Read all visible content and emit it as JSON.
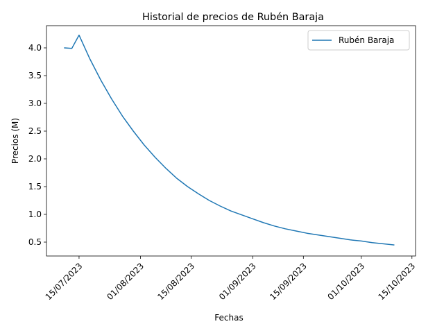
{
  "chart_data": {
    "type": "line",
    "title": "Historial de precios de Rubén Baraja",
    "xlabel": "Fechas",
    "ylabel": "Precios (M)",
    "xlim": [
      "2023-07-06",
      "2023-10-16"
    ],
    "ylim": [
      0.25,
      4.4
    ],
    "x_ticks": [
      "2023-07-15",
      "2023-08-01",
      "2023-08-15",
      "2023-09-01",
      "2023-09-15",
      "2023-10-01",
      "2023-10-15"
    ],
    "x_tick_labels": [
      "15/07/2023",
      "01/08/2023",
      "15/08/2023",
      "01/09/2023",
      "15/09/2023",
      "01/10/2023",
      "15/10/2023"
    ],
    "y_ticks": [
      0.5,
      1.0,
      1.5,
      2.0,
      2.5,
      3.0,
      3.5,
      4.0
    ],
    "y_tick_labels": [
      "0.5",
      "1.0",
      "1.5",
      "2.0",
      "2.5",
      "3.0",
      "3.5",
      "4.0"
    ],
    "grid": false,
    "legend_position": "top-right",
    "series": [
      {
        "name": "Rubén Baraja",
        "color": "#1f77b4",
        "points": [
          {
            "x": "2023-07-11",
            "y": 4.0
          },
          {
            "x": "2023-07-13",
            "y": 3.99
          },
          {
            "x": "2023-07-15",
            "y": 4.23
          },
          {
            "x": "2023-07-18",
            "y": 3.8
          },
          {
            "x": "2023-07-21",
            "y": 3.42
          },
          {
            "x": "2023-07-24",
            "y": 3.08
          },
          {
            "x": "2023-07-27",
            "y": 2.77
          },
          {
            "x": "2023-07-30",
            "y": 2.5
          },
          {
            "x": "2023-08-02",
            "y": 2.25
          },
          {
            "x": "2023-08-05",
            "y": 2.03
          },
          {
            "x": "2023-08-08",
            "y": 1.83
          },
          {
            "x": "2023-08-11",
            "y": 1.65
          },
          {
            "x": "2023-08-14",
            "y": 1.5
          },
          {
            "x": "2023-08-17",
            "y": 1.37
          },
          {
            "x": "2023-08-20",
            "y": 1.25
          },
          {
            "x": "2023-08-23",
            "y": 1.15
          },
          {
            "x": "2023-08-26",
            "y": 1.06
          },
          {
            "x": "2023-08-29",
            "y": 0.99
          },
          {
            "x": "2023-09-01",
            "y": 0.92
          },
          {
            "x": "2023-09-04",
            "y": 0.85
          },
          {
            "x": "2023-09-07",
            "y": 0.79
          },
          {
            "x": "2023-09-10",
            "y": 0.74
          },
          {
            "x": "2023-09-13",
            "y": 0.7
          },
          {
            "x": "2023-09-16",
            "y": 0.66
          },
          {
            "x": "2023-09-19",
            "y": 0.63
          },
          {
            "x": "2023-09-22",
            "y": 0.6
          },
          {
            "x": "2023-09-25",
            "y": 0.57
          },
          {
            "x": "2023-09-28",
            "y": 0.54
          },
          {
            "x": "2023-10-01",
            "y": 0.52
          },
          {
            "x": "2023-10-04",
            "y": 0.49
          },
          {
            "x": "2023-10-07",
            "y": 0.47
          },
          {
            "x": "2023-10-10",
            "y": 0.45
          }
        ]
      }
    ]
  }
}
